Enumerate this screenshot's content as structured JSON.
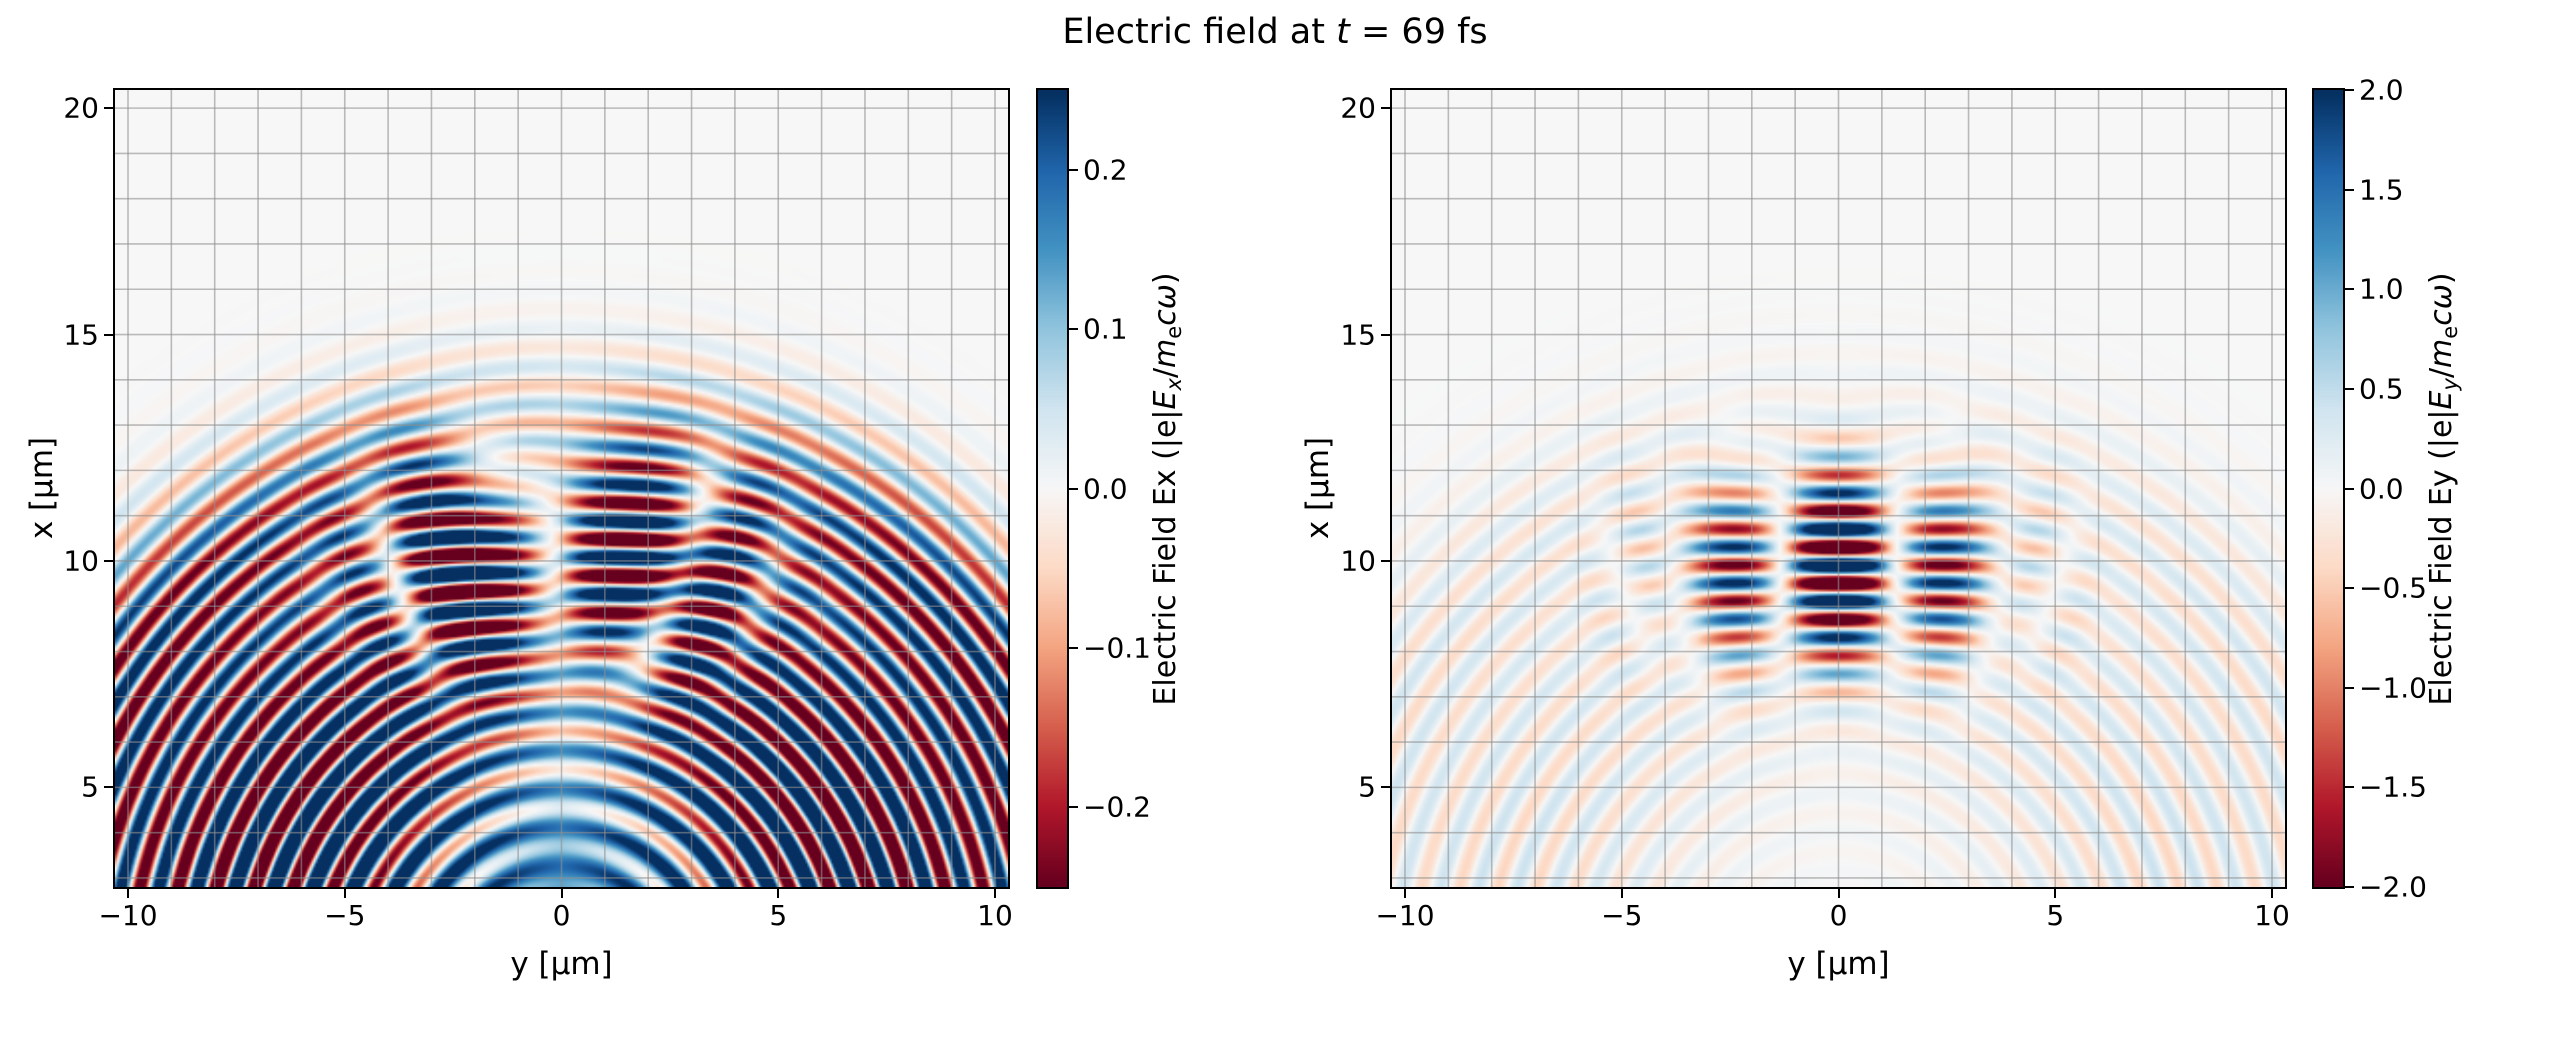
{
  "figure": {
    "title_segments": [
      {
        "t": "Electric field at "
      },
      {
        "t": "t",
        "i": true
      },
      {
        "t": " = 69 fs"
      }
    ]
  },
  "chart_data": [
    {
      "type": "heatmap",
      "title": "",
      "xlabel": "y [μm]",
      "ylabel": "x [μm]",
      "xlim": [
        -10.3,
        10.3
      ],
      "ylim": [
        2.8,
        20.4
      ],
      "xticks": [
        {
          "v": -10,
          "label": "−10"
        },
        {
          "v": -5,
          "label": "−5"
        },
        {
          "v": 0,
          "label": "0"
        },
        {
          "v": 5,
          "label": "5"
        },
        {
          "v": 10,
          "label": "10"
        }
      ],
      "yticks": [
        {
          "v": 5,
          "label": "5"
        },
        {
          "v": 10,
          "label": "10"
        },
        {
          "v": 15,
          "label": "15"
        },
        {
          "v": 20,
          "label": "20"
        }
      ],
      "grid": true,
      "grid_step": 1,
      "grid_color": "#8f8f8f",
      "colormap": "RdBu",
      "vmin": -0.25,
      "vmax": 0.25,
      "colorbar": {
        "ticks": [
          {
            "v": 0.2,
            "label": "0.2"
          },
          {
            "v": 0.1,
            "label": "0.1"
          },
          {
            "v": 0.0,
            "label": "0.0"
          },
          {
            "v": -0.1,
            "label": "−0.1"
          },
          {
            "v": -0.2,
            "label": "−0.2"
          }
        ],
        "label_segments": [
          {
            "t": "Electric Field Ex (|e|"
          },
          {
            "t": "E",
            "i": true
          },
          {
            "t": "x",
            "i": true,
            "sub": true
          },
          {
            "t": "/"
          },
          {
            "t": "m",
            "i": true
          },
          {
            "t": "e",
            "sub": true
          },
          {
            "t": "c",
            "i": true
          },
          {
            "t": "ω",
            "i": true
          },
          {
            "t": ")"
          }
        ]
      },
      "field": {
        "description": "laser pulse Ex component: striped pulse centered at x=10 with odd node at y=0, concentric scattered wavefront rings centered near origin, broad positive blob at bottom center",
        "pulse": {
          "x0": 9.9,
          "sigma_x": 2.1,
          "wavelength": 0.8,
          "amp": 0.9,
          "phase": 0,
          "y_mode": "odd",
          "y_scale": 2.2,
          "y_sigma": 2.6
        },
        "rings": {
          "center_x": 0.5,
          "center_y": 0.0,
          "wavelength": 0.85,
          "amp": 0.5,
          "phase": 0,
          "angular_min": 0.25,
          "bands": [
            [
              7.0,
              4.0,
              1.0
            ],
            [
              12.3,
              1.8,
              0.55
            ]
          ]
        },
        "blob": {
          "x0": 2.2,
          "y0": 0,
          "sigma_x": 3.4,
          "sigma_y": 5.0,
          "amp": 0.17
        }
      }
    },
    {
      "type": "heatmap",
      "title": "",
      "xlabel": "y [μm]",
      "ylabel": "x [μm]",
      "xlim": [
        -10.3,
        10.3
      ],
      "ylim": [
        2.8,
        20.4
      ],
      "xticks": [
        {
          "v": -10,
          "label": "−10"
        },
        {
          "v": -5,
          "label": "−5"
        },
        {
          "v": 0,
          "label": "0"
        },
        {
          "v": 5,
          "label": "5"
        },
        {
          "v": 10,
          "label": "10"
        }
      ],
      "yticks": [
        {
          "v": 5,
          "label": "5"
        },
        {
          "v": 10,
          "label": "10"
        },
        {
          "v": 15,
          "label": "15"
        },
        {
          "v": 20,
          "label": "20"
        }
      ],
      "grid": true,
      "grid_step": 1,
      "grid_color": "#8f8f8f",
      "colormap": "RdBu",
      "vmin": -2.0,
      "vmax": 2.0,
      "colorbar": {
        "ticks": [
          {
            "v": 2.0,
            "label": "2.0"
          },
          {
            "v": 1.5,
            "label": "1.5"
          },
          {
            "v": 1.0,
            "label": "1.0"
          },
          {
            "v": 0.5,
            "label": "0.5"
          },
          {
            "v": 0.0,
            "label": "0.0"
          },
          {
            "v": -0.5,
            "label": "−0.5"
          },
          {
            "v": -1.0,
            "label": "−1.0"
          },
          {
            "v": -1.5,
            "label": "−1.5"
          },
          {
            "v": -2.0,
            "label": "−2.0"
          }
        ],
        "label_segments": [
          {
            "t": "Electric Field Ey (|e|"
          },
          {
            "t": "E",
            "i": true
          },
          {
            "t": "y",
            "i": true,
            "sub": true
          },
          {
            "t": "/"
          },
          {
            "t": "m",
            "i": true
          },
          {
            "t": "e",
            "sub": true
          },
          {
            "t": "c",
            "i": true
          },
          {
            "t": "ω",
            "i": true
          },
          {
            "t": ")"
          }
        ]
      },
      "field": {
        "description": "laser pulse Ey component: strong striped pulse centered at x=10 with even three-column mode structure (nodes near y=±1.3), faint concentric scattered rings",
        "pulse": {
          "x0": 9.9,
          "sigma_x": 2.0,
          "wavelength": 0.8,
          "amp": 4.0,
          "phase": 1.57,
          "y_mode": "even",
          "y_period": 2.6,
          "y_sigma": 3.2
        },
        "rings": {
          "center_x": 0.5,
          "center_y": 0.0,
          "wavelength": 0.85,
          "amp": 0.45,
          "phase": 0.8,
          "angular_min": 0.4,
          "bands": [
            [
              8.0,
              4.0,
              1.0
            ],
            [
              12.3,
              1.8,
              0.6
            ]
          ]
        }
      }
    }
  ]
}
